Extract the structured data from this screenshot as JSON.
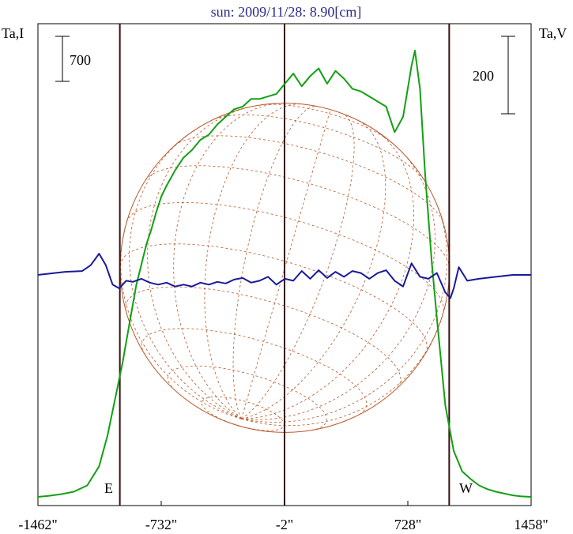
{
  "chart_data": {
    "type": "line",
    "title": "sun: 2009/11/28: 8.90[cm]",
    "y_left_label": "Ta,I",
    "y_right_label": "Ta,V",
    "scale_bar_left": "700",
    "scale_bar_right": "200",
    "east_label": "E",
    "west_label": "W",
    "x_ticks": [
      {
        "value": -1462,
        "label": "-1462\""
      },
      {
        "value": -732,
        "label": "-732\""
      },
      {
        "value": -2,
        "label": "-2\""
      },
      {
        "value": 728,
        "label": "728\""
      },
      {
        "value": 1458,
        "label": "1458\""
      }
    ],
    "xlim": [
      -1462,
      1458
    ],
    "vertical_lines": [
      -977,
      -2,
      973
    ],
    "solar_disk_radius_arcsec": 975,
    "series": [
      {
        "key": "intensity",
        "color": "#12a012",
        "x": [
          -1462,
          -1400,
          -1330,
          -1250,
          -1170,
          -1100,
          -1050,
          -1000,
          -960,
          -920,
          -880,
          -850,
          -820,
          -790,
          -760,
          -730,
          -700,
          -650,
          -600,
          -550,
          -500,
          -450,
          -400,
          -350,
          -300,
          -250,
          -200,
          -150,
          -100,
          -50,
          0,
          50,
          100,
          150,
          200,
          250,
          300,
          350,
          400,
          450,
          500,
          550,
          600,
          650,
          700,
          750,
          770,
          800,
          830,
          870,
          900,
          950,
          1000,
          1050,
          1100,
          1150,
          1200,
          1250,
          1300,
          1350,
          1400,
          1458
        ],
        "y": [
          0,
          40,
          100,
          200,
          450,
          1200,
          2400,
          4000,
          5300,
          6800,
          8300,
          9100,
          9900,
          10500,
          11200,
          11800,
          12200,
          12800,
          13300,
          13600,
          14000,
          14200,
          14600,
          14900,
          15200,
          15300,
          15600,
          15600,
          15700,
          15800,
          16200,
          16600,
          16100,
          16500,
          16800,
          16200,
          16700,
          16400,
          16000,
          15900,
          15700,
          15500,
          15300,
          14300,
          14900,
          16900,
          17500,
          16000,
          12700,
          9200,
          7000,
          3600,
          1800,
          1000,
          700,
          450,
          300,
          200,
          130,
          60,
          20,
          0
        ]
      },
      {
        "key": "polarization",
        "color": "#1a1a99",
        "x": [
          -1462,
          -1300,
          -1200,
          -1150,
          -1100,
          -1060,
          -1020,
          -980,
          -940,
          -900,
          -850,
          -800,
          -750,
          -700,
          -650,
          -600,
          -550,
          -500,
          -450,
          -400,
          -350,
          -300,
          -250,
          -200,
          -150,
          -100,
          -50,
          0,
          50,
          100,
          150,
          200,
          250,
          300,
          350,
          400,
          450,
          500,
          550,
          600,
          650,
          700,
          750,
          800,
          850,
          900,
          950,
          980,
          1000,
          1030,
          1080,
          1150,
          1250,
          1350,
          1458
        ],
        "y": [
          0,
          8,
          10,
          25,
          55,
          25,
          -25,
          -35,
          -15,
          -18,
          -10,
          -20,
          -25,
          -20,
          -30,
          -25,
          -30,
          -20,
          -25,
          -18,
          -22,
          -12,
          -8,
          -20,
          -15,
          -5,
          -25,
          -10,
          -15,
          10,
          -10,
          12,
          -8,
          8,
          -5,
          10,
          5,
          -10,
          5,
          12,
          -15,
          -30,
          30,
          -5,
          -10,
          5,
          -45,
          -60,
          -35,
          20,
          -15,
          -10,
          -5,
          0,
          0
        ]
      }
    ]
  }
}
